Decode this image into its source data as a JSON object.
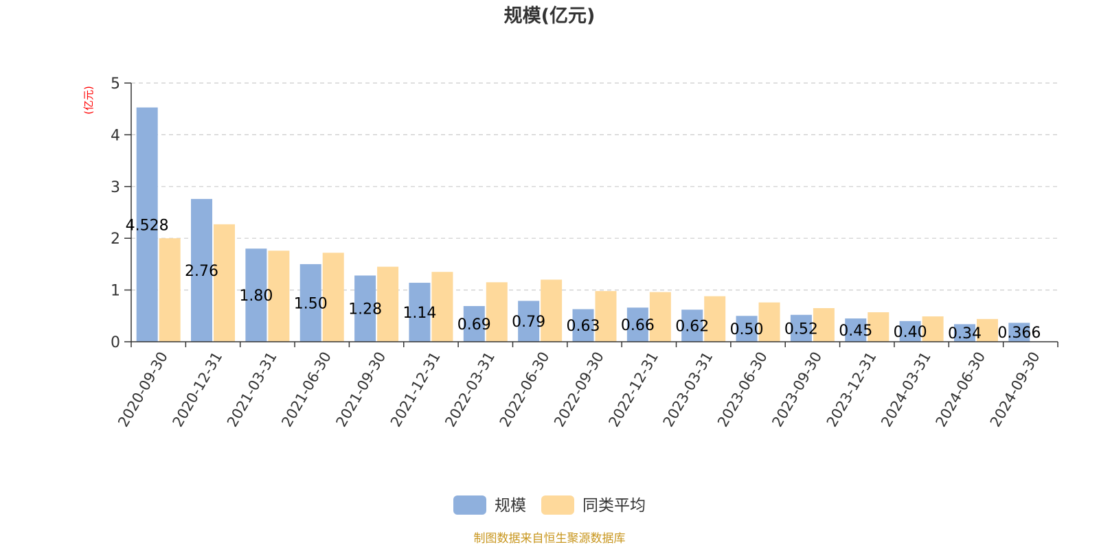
{
  "chart_data": {
    "type": "bar",
    "title": "规模(亿元)",
    "ylabel": "(亿元)",
    "xlabel": "",
    "ylim": [
      0,
      5
    ],
    "yticks": [
      0,
      1,
      2,
      3,
      4,
      5
    ],
    "grid": true,
    "legend_position": "bottom-center",
    "categories": [
      "2020-09-30",
      "2020-12-31",
      "2021-03-31",
      "2021-06-30",
      "2021-09-30",
      "2021-12-31",
      "2022-03-31",
      "2022-06-30",
      "2022-09-30",
      "2022-12-31",
      "2023-03-31",
      "2023-06-30",
      "2023-09-30",
      "2023-12-31",
      "2024-03-31",
      "2024-06-30",
      "2024-09-30"
    ],
    "series": [
      {
        "name": "规模",
        "color": "#8fb0dd",
        "values": [
          4.528,
          2.76,
          1.8,
          1.5,
          1.28,
          1.14,
          0.69,
          0.79,
          0.63,
          0.66,
          0.62,
          0.5,
          0.52,
          0.45,
          0.4,
          0.34,
          0.366
        ],
        "labels": [
          "4.528",
          "2.76",
          "1.80",
          "1.50",
          "1.28",
          "1.14",
          "0.69",
          "0.79",
          "0.63",
          "0.66",
          "0.62",
          "0.50",
          "0.52",
          "0.45",
          "0.40",
          "0.34",
          "0.366"
        ]
      },
      {
        "name": "同类平均",
        "color": "#fed99b",
        "values": [
          2.0,
          2.27,
          1.76,
          1.72,
          1.45,
          1.35,
          1.15,
          1.2,
          0.98,
          0.96,
          0.88,
          0.76,
          0.65,
          0.57,
          0.49,
          0.44,
          null
        ]
      }
    ],
    "source": "制图数据来自恒生聚源数据库"
  },
  "colors": {
    "title": "#333333",
    "ylabel": "#ff0000",
    "axis": "#333333",
    "grid": "#cccccc",
    "source": "#c8961e"
  }
}
